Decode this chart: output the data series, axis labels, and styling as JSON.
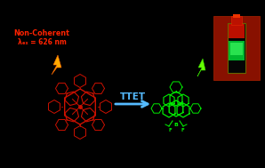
{
  "background_color": "#000000",
  "label_noncoherent": "Non-Coherent",
  "label_wavelength": "λₑₓ = 626 nm",
  "label_ttet": "TTET",
  "text_color_red": "#ff2200",
  "arrow_color": "#55bbff",
  "lightning_orange": "#ffaa00",
  "lightning_orange2": "#ff7700",
  "green_lightning_color": "#66ff00",
  "porphyrin_color": "#cc1100",
  "bodipy_color": "#00ee00",
  "fig_width": 2.98,
  "fig_height": 1.89
}
